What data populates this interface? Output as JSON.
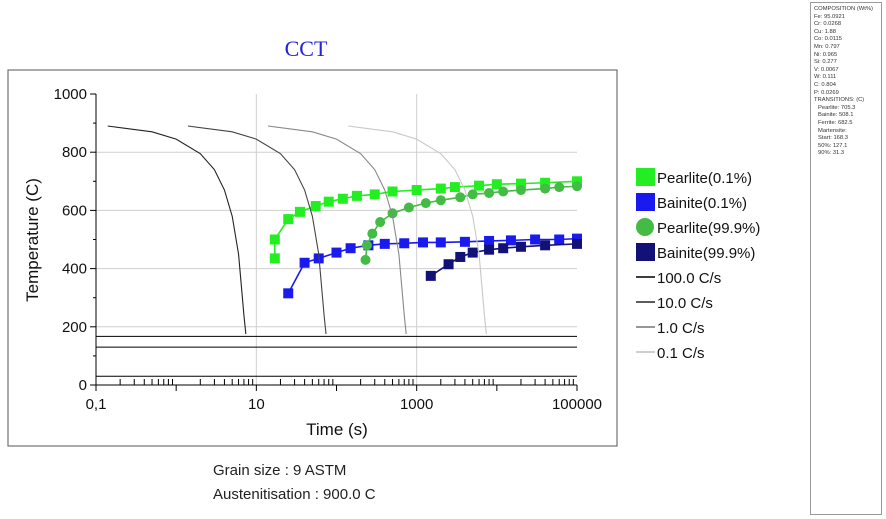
{
  "chart_data": {
    "type": "line",
    "title": "CCT",
    "xlabel": "Time (s)",
    "ylabel": "Temperature (C)",
    "x_scale": "log",
    "xlim": [
      0.1,
      100000
    ],
    "ylim": [
      0,
      1000
    ],
    "x_ticks": [
      "0,1",
      "10",
      "1000",
      "100000"
    ],
    "y_ticks": [
      "0",
      "200",
      "400",
      "600",
      "800",
      "1000"
    ],
    "grid": true,
    "legend_position": "right",
    "horizontal_lines": [
      167,
      130,
      30
    ],
    "series": [
      {
        "name": "Pearlite(0.1%)",
        "color": "#22ee22",
        "marker": "square",
        "points": [
          [
            17,
            435
          ],
          [
            17,
            500
          ],
          [
            25,
            570
          ],
          [
            35,
            595
          ],
          [
            55,
            615
          ],
          [
            80,
            630
          ],
          [
            120,
            640
          ],
          [
            180,
            650
          ],
          [
            300,
            655
          ],
          [
            500,
            665
          ],
          [
            1000,
            670
          ],
          [
            2000,
            675
          ],
          [
            3000,
            680
          ],
          [
            6000,
            685
          ],
          [
            10000,
            690
          ],
          [
            20000,
            692
          ],
          [
            40000,
            695
          ],
          [
            100000,
            700
          ]
        ]
      },
      {
        "name": "Bainite(0.1%)",
        "color": "#1a1aee",
        "marker": "square",
        "points": [
          [
            25,
            315
          ],
          [
            40,
            420
          ],
          [
            60,
            435
          ],
          [
            100,
            455
          ],
          [
            150,
            470
          ],
          [
            250,
            480
          ],
          [
            400,
            485
          ],
          [
            700,
            487
          ],
          [
            1200,
            490
          ],
          [
            2000,
            490
          ],
          [
            4000,
            492
          ],
          [
            8000,
            495
          ],
          [
            15000,
            497
          ],
          [
            30000,
            500
          ],
          [
            60000,
            500
          ],
          [
            100000,
            503
          ]
        ]
      },
      {
        "name": "Pearlite(99.9%)",
        "color": "#44bb44",
        "marker": "circle",
        "points": [
          [
            230,
            430
          ],
          [
            240,
            480
          ],
          [
            280,
            520
          ],
          [
            350,
            560
          ],
          [
            500,
            590
          ],
          [
            800,
            610
          ],
          [
            1300,
            625
          ],
          [
            2000,
            635
          ],
          [
            3500,
            645
          ],
          [
            5000,
            655
          ],
          [
            8000,
            660
          ],
          [
            12000,
            665
          ],
          [
            20000,
            670
          ],
          [
            40000,
            675
          ],
          [
            60000,
            680
          ],
          [
            100000,
            683
          ]
        ]
      },
      {
        "name": "Bainite(99.9%)",
        "color": "#111177",
        "marker": "square",
        "points": [
          [
            1500,
            375
          ],
          [
            2500,
            415
          ],
          [
            3500,
            440
          ],
          [
            5000,
            455
          ],
          [
            8000,
            465
          ],
          [
            12000,
            470
          ],
          [
            20000,
            475
          ],
          [
            40000,
            480
          ],
          [
            100000,
            485
          ]
        ]
      },
      {
        "name": "100.0 C/s",
        "color": "#222222",
        "marker": "none",
        "points": [
          [
            0.14,
            890
          ],
          [
            0.5,
            870
          ],
          [
            1,
            845
          ],
          [
            2,
            795
          ],
          [
            3,
            740
          ],
          [
            4,
            670
          ],
          [
            5,
            580
          ],
          [
            6,
            450
          ],
          [
            6.7,
            300
          ],
          [
            7,
            240
          ],
          [
            7.4,
            175
          ]
        ]
      },
      {
        "name": "10.0 C/s",
        "color": "#444444",
        "marker": "none",
        "points": [
          [
            1.4,
            890
          ],
          [
            5,
            870
          ],
          [
            10,
            845
          ],
          [
            20,
            795
          ],
          [
            30,
            740
          ],
          [
            40,
            670
          ],
          [
            50,
            580
          ],
          [
            60,
            450
          ],
          [
            67,
            300
          ],
          [
            70,
            240
          ],
          [
            74,
            175
          ]
        ]
      },
      {
        "name": "1.0 C/s",
        "color": "#888888",
        "marker": "none",
        "points": [
          [
            14,
            890
          ],
          [
            50,
            870
          ],
          [
            100,
            845
          ],
          [
            200,
            795
          ],
          [
            300,
            740
          ],
          [
            400,
            670
          ],
          [
            500,
            580
          ],
          [
            600,
            450
          ],
          [
            670,
            300
          ],
          [
            700,
            240
          ],
          [
            740,
            175
          ]
        ]
      },
      {
        "name": "0.1 C/s",
        "color": "#c8c8c8",
        "marker": "none",
        "points": [
          [
            140,
            890
          ],
          [
            500,
            870
          ],
          [
            1000,
            845
          ],
          [
            2000,
            795
          ],
          [
            3000,
            740
          ],
          [
            4000,
            670
          ],
          [
            5000,
            580
          ],
          [
            6000,
            450
          ],
          [
            6700,
            300
          ],
          [
            7000,
            240
          ],
          [
            7400,
            175
          ]
        ]
      }
    ]
  },
  "footer": {
    "grain_size": "Grain size : 9 ASTM",
    "austenitisation": "Austenitisation : 900.0 C"
  },
  "panel": {
    "composition_title": "COMPOSITION (Wt%)",
    "composition": [
      "Fe: 95.0921",
      "Cr: 0.0268",
      "Cu: 1.88",
      "Co: 0.0115",
      "Mn: 0.797",
      "Ni: 0.965",
      "Si: 0.277",
      "V: 0.0067",
      "W: 0.111",
      "C: 0.804",
      "P: 0.0269"
    ],
    "transitions_title": "TRANSITIONS: (C)",
    "transitions": [
      "Pearlite:  705.3",
      "Bainite:  508.1",
      "Ferrite:  682.5"
    ],
    "martensite_title": "Martensite:",
    "martensite": [
      "Start:  168.3",
      "50%:  127.1",
      "90%:  31.3"
    ]
  }
}
